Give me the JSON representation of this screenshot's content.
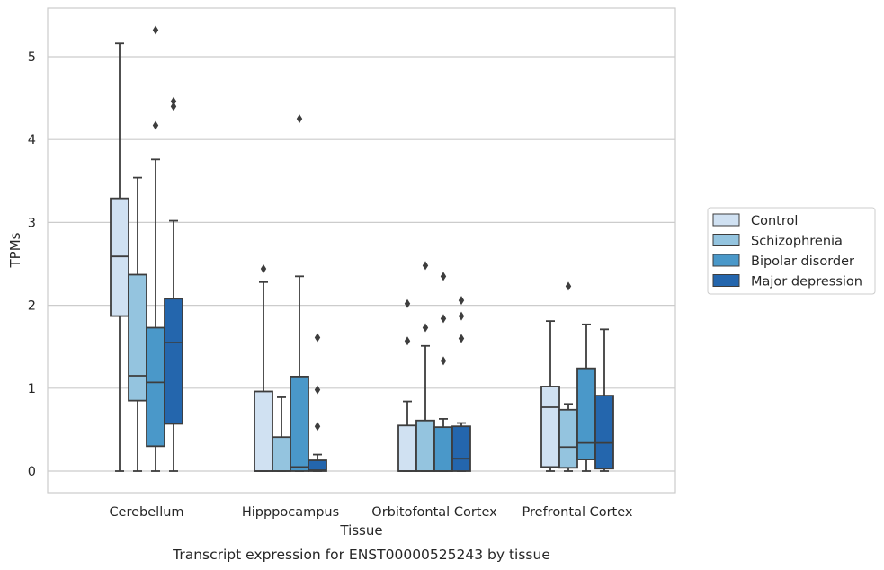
{
  "colors": {
    "series": [
      "#d0e1f2",
      "#94c4df",
      "#4a98c9",
      "#2466ad"
    ],
    "edge": "#3d3d3d",
    "grid": "#cccccc",
    "frame": "#cccccc"
  },
  "chart_data": {
    "type": "box",
    "title": "",
    "caption": "Transcript expression for ENST00000525243 by tissue",
    "xlabel": "Tissue",
    "ylabel": "TPMs",
    "ylim": [
      -0.25,
      5.6
    ],
    "yticks": [
      0,
      1,
      2,
      3,
      4,
      5
    ],
    "grid": true,
    "legend_position": "right-outside",
    "categories": [
      "Cerebellum",
      "Hipppocampus",
      "Orbitofontal Cortex",
      "Prefrontal Cortex"
    ],
    "series": [
      {
        "name": "Control",
        "boxes": [
          {
            "whislo": 0,
            "q1": 1.87,
            "med": 2.59,
            "q3": 3.29,
            "whishi": 5.16,
            "fliers": []
          },
          {
            "whislo": 0,
            "q1": 0,
            "med": 0,
            "q3": 0.96,
            "whishi": 2.28,
            "fliers": [
              2.44
            ]
          },
          {
            "whislo": 0,
            "q1": 0,
            "med": 0,
            "q3": 0.55,
            "whishi": 0.84,
            "fliers": [
              1.57,
              2.02
            ]
          },
          {
            "whislo": 0,
            "q1": 0.05,
            "med": 0.77,
            "q3": 1.02,
            "whishi": 1.81,
            "fliers": []
          }
        ]
      },
      {
        "name": "Schizophrenia",
        "boxes": [
          {
            "whislo": 0,
            "q1": 0.85,
            "med": 1.15,
            "q3": 2.37,
            "whishi": 3.54,
            "fliers": []
          },
          {
            "whislo": 0,
            "q1": 0,
            "med": 0,
            "q3": 0.41,
            "whishi": 0.89,
            "fliers": []
          },
          {
            "whislo": 0,
            "q1": 0,
            "med": 0,
            "q3": 0.61,
            "whishi": 1.51,
            "fliers": [
              1.73,
              2.48
            ]
          },
          {
            "whislo": 0,
            "q1": 0.04,
            "med": 0.29,
            "q3": 0.74,
            "whishi": 0.81,
            "fliers": [
              2.23
            ]
          }
        ]
      },
      {
        "name": "Bipolar disorder",
        "boxes": [
          {
            "whislo": 0,
            "q1": 0.3,
            "med": 1.07,
            "q3": 1.73,
            "whishi": 3.76,
            "fliers": [
              4.17,
              5.32
            ]
          },
          {
            "whislo": 0,
            "q1": 0,
            "med": 0.05,
            "q3": 1.14,
            "whishi": 2.35,
            "fliers": [
              4.25
            ]
          },
          {
            "whislo": 0,
            "q1": 0,
            "med": 0,
            "q3": 0.53,
            "whishi": 0.63,
            "fliers": [
              1.33,
              1.84,
              2.35
            ]
          },
          {
            "whislo": 0,
            "q1": 0.14,
            "med": 0.34,
            "q3": 1.24,
            "whishi": 1.77,
            "fliers": []
          }
        ]
      },
      {
        "name": "Major depression",
        "boxes": [
          {
            "whislo": 0,
            "q1": 0.57,
            "med": 1.55,
            "q3": 2.08,
            "whishi": 3.02,
            "fliers": [
              4.4,
              4.46
            ]
          },
          {
            "whislo": 0,
            "q1": 0,
            "med": 0.01,
            "q3": 0.13,
            "whishi": 0.2,
            "fliers": [
              0.54,
              0.98,
              1.61
            ]
          },
          {
            "whislo": 0,
            "q1": 0,
            "med": 0.15,
            "q3": 0.54,
            "whishi": 0.58,
            "fliers": [
              1.6,
              1.87,
              2.06
            ]
          },
          {
            "whislo": 0,
            "q1": 0.03,
            "med": 0.34,
            "q3": 0.91,
            "whishi": 1.71,
            "fliers": []
          }
        ]
      }
    ]
  }
}
